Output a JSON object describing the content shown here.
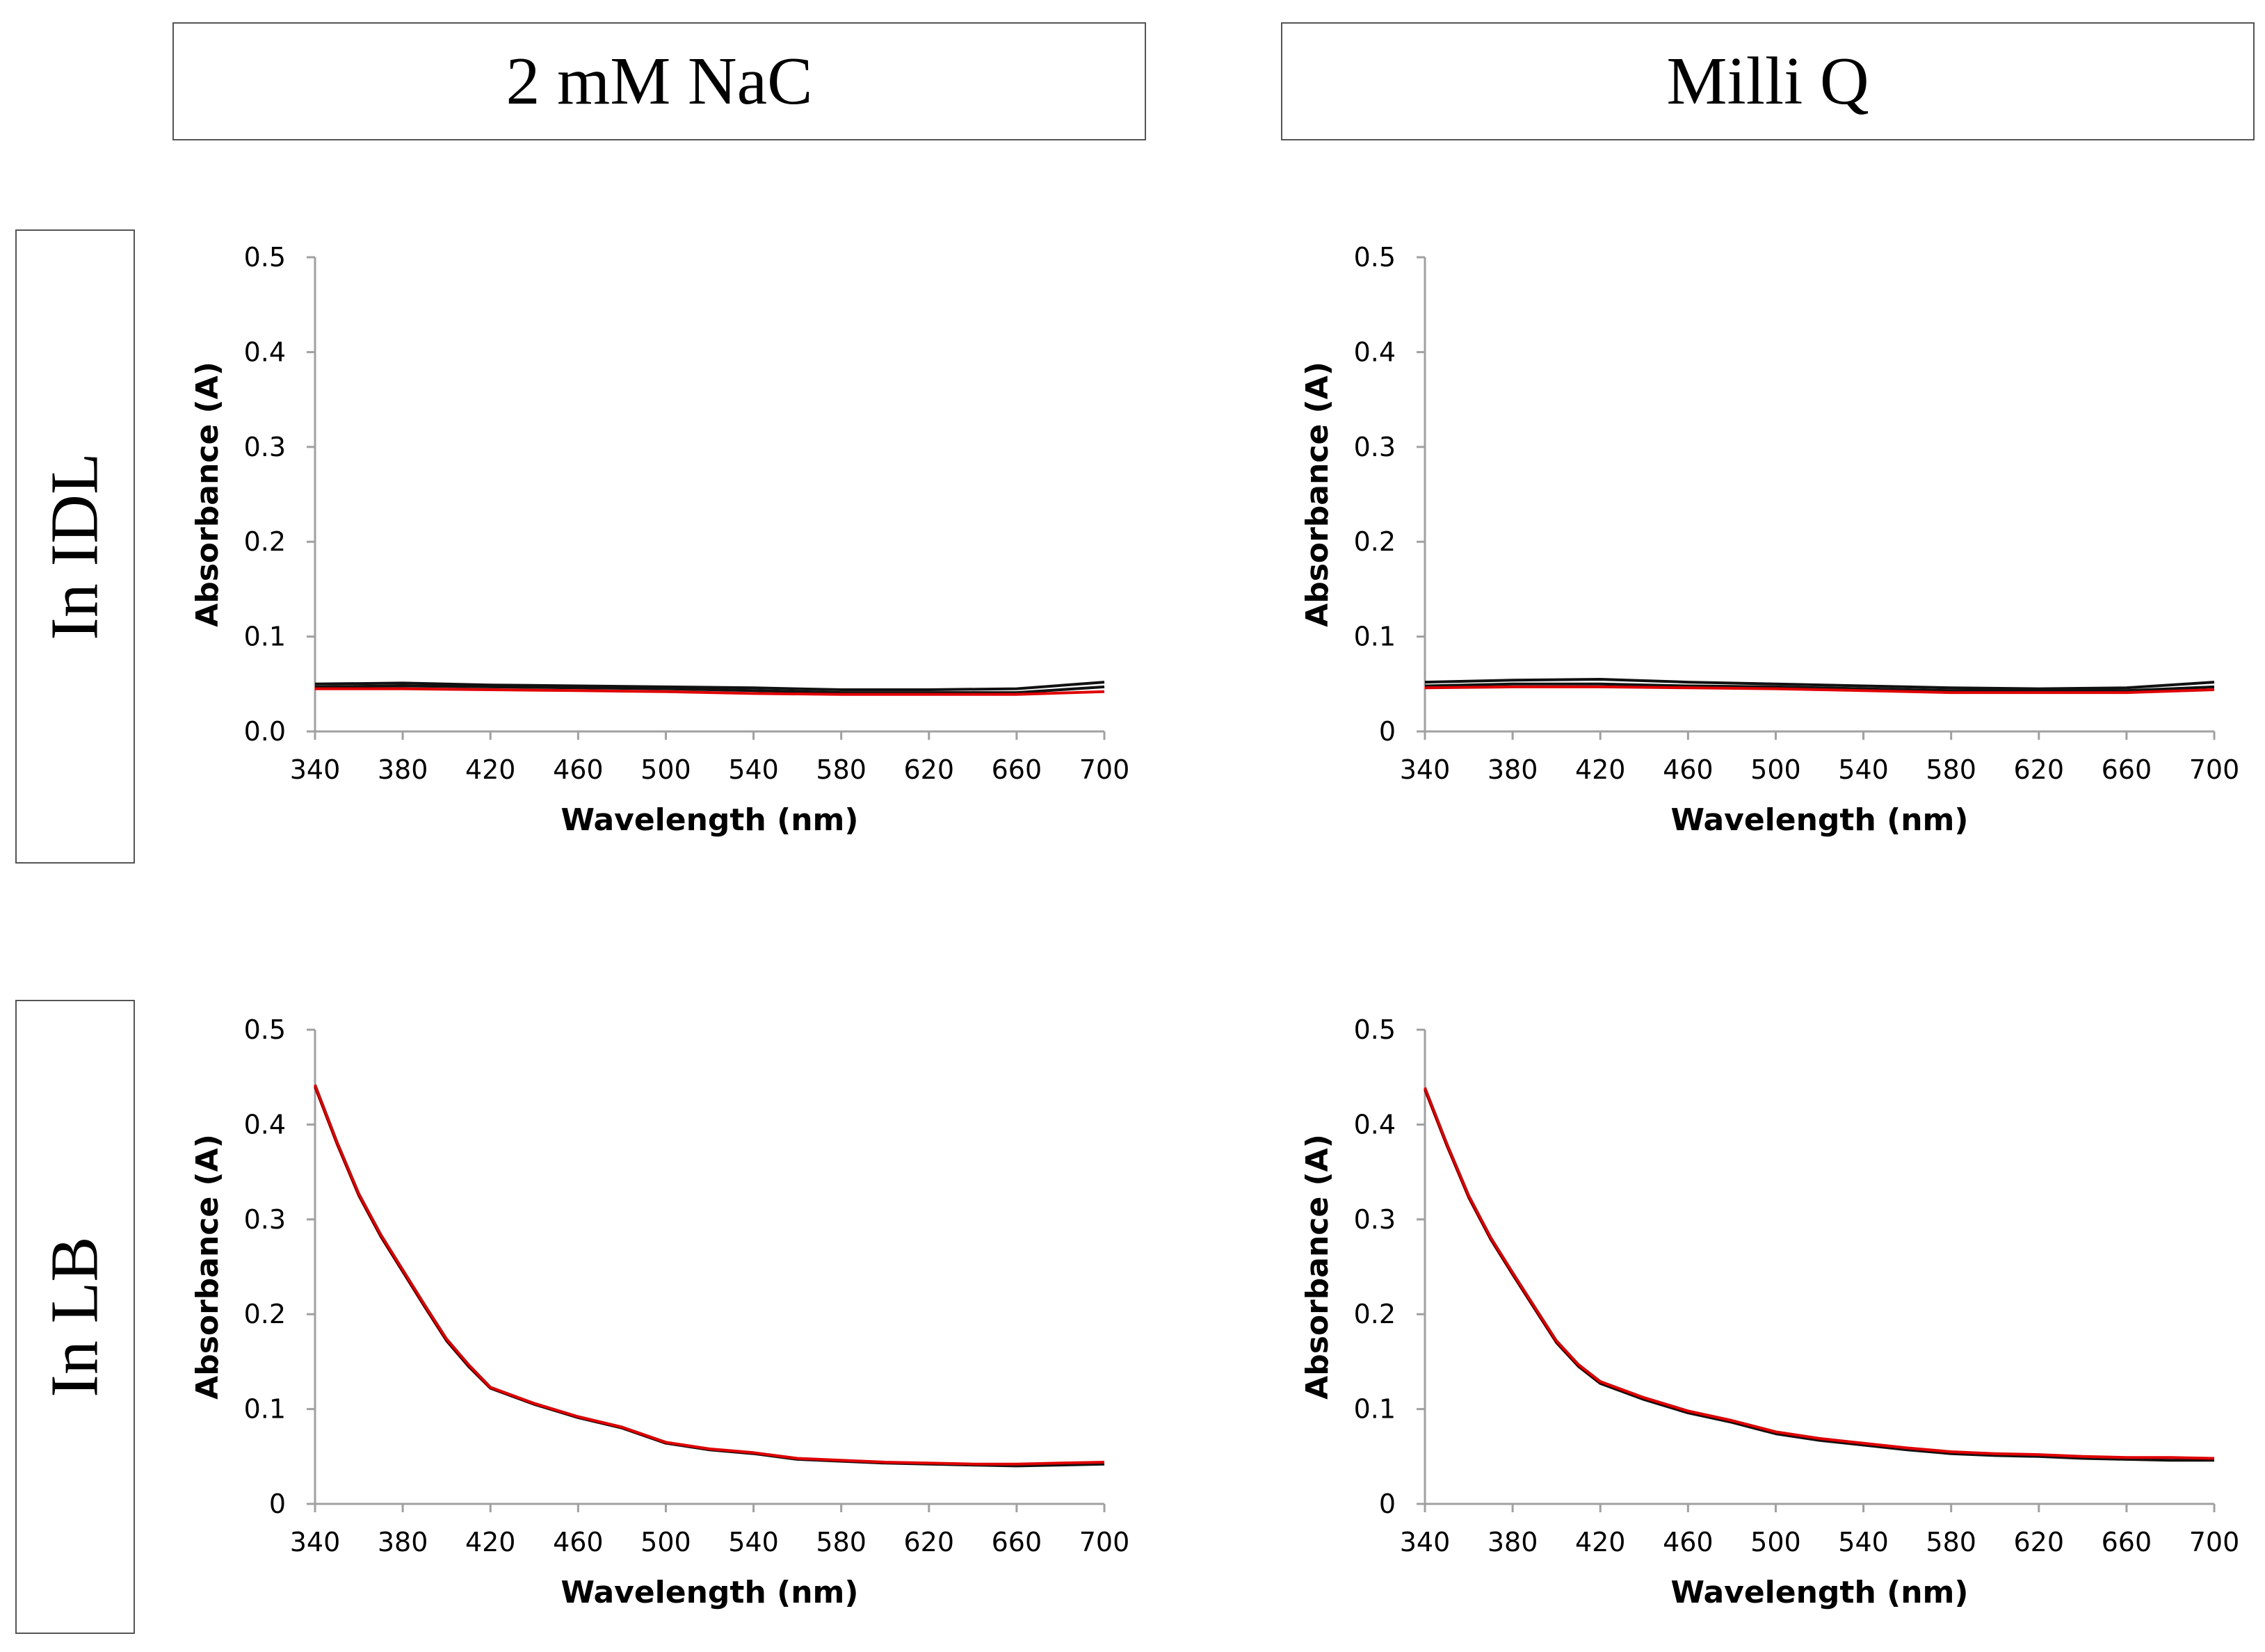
{
  "headers": {
    "columns": [
      "2 mM NaC",
      "Milli Q"
    ],
    "rows": [
      "In IDL",
      "In LB"
    ]
  },
  "colors": {
    "black": "#111111",
    "red": "#e00000",
    "axis": "#a0a0a0"
  },
  "chart_data": [
    {
      "type": "line",
      "panel": "IDL / 2 mM NaC",
      "xlabel": "Wavelength (nm)",
      "ylabel": "Absorbance (A)",
      "xlim": [
        340,
        700
      ],
      "ylim": [
        0,
        0.5
      ],
      "xticks": [
        "340",
        "380",
        "420",
        "460",
        "500",
        "540",
        "580",
        "620",
        "660",
        "700"
      ],
      "yticks": [
        "0.0",
        "0.1",
        "0.2",
        "0.3",
        "0.4",
        "0.5"
      ],
      "series": [
        {
          "name": "black-1",
          "color": "#111111",
          "x": [
            340,
            380,
            420,
            460,
            500,
            540,
            580,
            620,
            660,
            700
          ],
          "y": [
            0.05,
            0.051,
            0.049,
            0.048,
            0.047,
            0.046,
            0.044,
            0.044,
            0.045,
            0.052
          ]
        },
        {
          "name": "black-2",
          "color": "#111111",
          "x": [
            340,
            380,
            420,
            460,
            500,
            540,
            580,
            620,
            660,
            700
          ],
          "y": [
            0.047,
            0.048,
            0.047,
            0.046,
            0.045,
            0.043,
            0.041,
            0.041,
            0.041,
            0.047
          ]
        },
        {
          "name": "red",
          "color": "#e00000",
          "x": [
            340,
            380,
            420,
            460,
            500,
            540,
            580,
            620,
            660,
            700
          ],
          "y": [
            0.045,
            0.045,
            0.044,
            0.043,
            0.042,
            0.04,
            0.039,
            0.039,
            0.039,
            0.042
          ]
        }
      ]
    },
    {
      "type": "line",
      "panel": "IDL / Milli Q",
      "xlabel": "Wavelength (nm)",
      "ylabel": "Absorbance (A)",
      "xlim": [
        340,
        700
      ],
      "ylim": [
        0,
        0.5
      ],
      "xticks": [
        "340",
        "380",
        "420",
        "460",
        "500",
        "540",
        "580",
        "620",
        "660",
        "700"
      ],
      "yticks": [
        "0",
        "0.1",
        "0.2",
        "0.3",
        "0.4",
        "0.5"
      ],
      "series": [
        {
          "name": "black-1",
          "color": "#111111",
          "x": [
            340,
            380,
            420,
            460,
            500,
            540,
            580,
            620,
            660,
            700
          ],
          "y": [
            0.052,
            0.054,
            0.055,
            0.052,
            0.05,
            0.048,
            0.046,
            0.045,
            0.046,
            0.052
          ]
        },
        {
          "name": "black-2",
          "color": "#111111",
          "x": [
            340,
            380,
            420,
            460,
            500,
            540,
            580,
            620,
            660,
            700
          ],
          "y": [
            0.048,
            0.05,
            0.05,
            0.048,
            0.047,
            0.045,
            0.043,
            0.043,
            0.043,
            0.047
          ]
        },
        {
          "name": "red",
          "color": "#e00000",
          "x": [
            340,
            380,
            420,
            460,
            500,
            540,
            580,
            620,
            660,
            700
          ],
          "y": [
            0.046,
            0.047,
            0.047,
            0.046,
            0.045,
            0.043,
            0.041,
            0.041,
            0.041,
            0.044
          ]
        }
      ]
    },
    {
      "type": "line",
      "panel": "LB / 2 mM NaC",
      "xlabel": "Wavelength (nm)",
      "ylabel": "Absorbance (A)",
      "xlim": [
        340,
        700
      ],
      "ylim": [
        0,
        0.5
      ],
      "xticks": [
        "340",
        "380",
        "420",
        "460",
        "500",
        "540",
        "580",
        "620",
        "660",
        "700"
      ],
      "yticks": [
        "0",
        "0.1",
        "0.2",
        "0.3",
        "0.4",
        "0.5"
      ],
      "series": [
        {
          "name": "black",
          "color": "#111111",
          "x": [
            340,
            350,
            360,
            370,
            380,
            390,
            400,
            410,
            420,
            440,
            460,
            480,
            500,
            520,
            540,
            560,
            580,
            600,
            620,
            640,
            660,
            680,
            700
          ],
          "y": [
            0.44,
            0.38,
            0.325,
            0.282,
            0.245,
            0.208,
            0.172,
            0.145,
            0.122,
            0.105,
            0.091,
            0.08,
            0.064,
            0.057,
            0.053,
            0.047,
            0.045,
            0.043,
            0.042,
            0.041,
            0.04,
            0.041,
            0.042
          ]
        },
        {
          "name": "red",
          "color": "#e00000",
          "x": [
            340,
            350,
            360,
            370,
            380,
            390,
            400,
            410,
            420,
            440,
            460,
            480,
            500,
            520,
            540,
            560,
            580,
            600,
            620,
            640,
            660,
            680,
            700
          ],
          "y": [
            0.442,
            0.382,
            0.327,
            0.284,
            0.247,
            0.21,
            0.174,
            0.147,
            0.123,
            0.106,
            0.092,
            0.081,
            0.065,
            0.058,
            0.054,
            0.048,
            0.046,
            0.044,
            0.043,
            0.042,
            0.042,
            0.043,
            0.044
          ]
        }
      ]
    },
    {
      "type": "line",
      "panel": "LB / Milli Q",
      "xlabel": "Wavelength (nm)",
      "ylabel": "Absorbance (A)",
      "xlim": [
        340,
        700
      ],
      "ylim": [
        0,
        0.5
      ],
      "xticks": [
        "340",
        "380",
        "420",
        "460",
        "500",
        "540",
        "580",
        "620",
        "660",
        "700"
      ],
      "yticks": [
        "0",
        "0.1",
        "0.2",
        "0.3",
        "0.4",
        "0.5"
      ],
      "series": [
        {
          "name": "black",
          "color": "#111111",
          "x": [
            340,
            350,
            360,
            370,
            380,
            390,
            400,
            410,
            420,
            440,
            460,
            480,
            500,
            520,
            540,
            560,
            580,
            600,
            620,
            640,
            660,
            680,
            700
          ],
          "y": [
            0.437,
            0.378,
            0.323,
            0.279,
            0.242,
            0.206,
            0.17,
            0.145,
            0.127,
            0.11,
            0.096,
            0.086,
            0.074,
            0.067,
            0.062,
            0.057,
            0.053,
            0.051,
            0.05,
            0.048,
            0.047,
            0.046,
            0.046
          ]
        },
        {
          "name": "red",
          "color": "#e00000",
          "x": [
            340,
            350,
            360,
            370,
            380,
            390,
            400,
            410,
            420,
            440,
            460,
            480,
            500,
            520,
            540,
            560,
            580,
            600,
            620,
            640,
            660,
            680,
            700
          ],
          "y": [
            0.439,
            0.38,
            0.325,
            0.281,
            0.244,
            0.208,
            0.172,
            0.147,
            0.129,
            0.112,
            0.098,
            0.088,
            0.076,
            0.069,
            0.064,
            0.059,
            0.055,
            0.053,
            0.052,
            0.05,
            0.049,
            0.049,
            0.048
          ]
        }
      ]
    }
  ]
}
